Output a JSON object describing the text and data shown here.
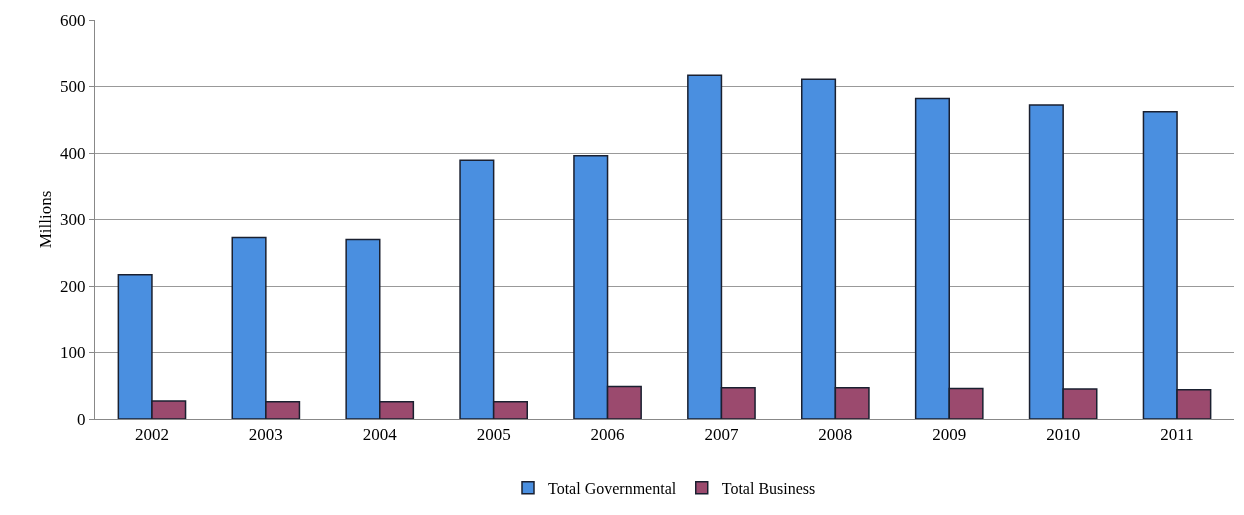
{
  "chart_data": {
    "type": "bar",
    "ylabel": "Millions",
    "categories": [
      "2002",
      "2003",
      "2004",
      "2005",
      "2006",
      "2007",
      "2008",
      "2009",
      "2010",
      "2011"
    ],
    "series": [
      {
        "name": "Total Governmental",
        "color": "#4a8fe0",
        "values": [
          217,
          273,
          270,
          389,
          396,
          517,
          511,
          482,
          472,
          462
        ]
      },
      {
        "name": "Total Business",
        "color": "#9b4a6e",
        "values": [
          27,
          26,
          26,
          26,
          49,
          47,
          47,
          46,
          45,
          44
        ]
      }
    ],
    "ylim": [
      0,
      600
    ],
    "yticks": [
      0,
      100,
      200,
      300,
      400,
      500,
      600
    ],
    "grid": "y",
    "legend": "bottom"
  }
}
